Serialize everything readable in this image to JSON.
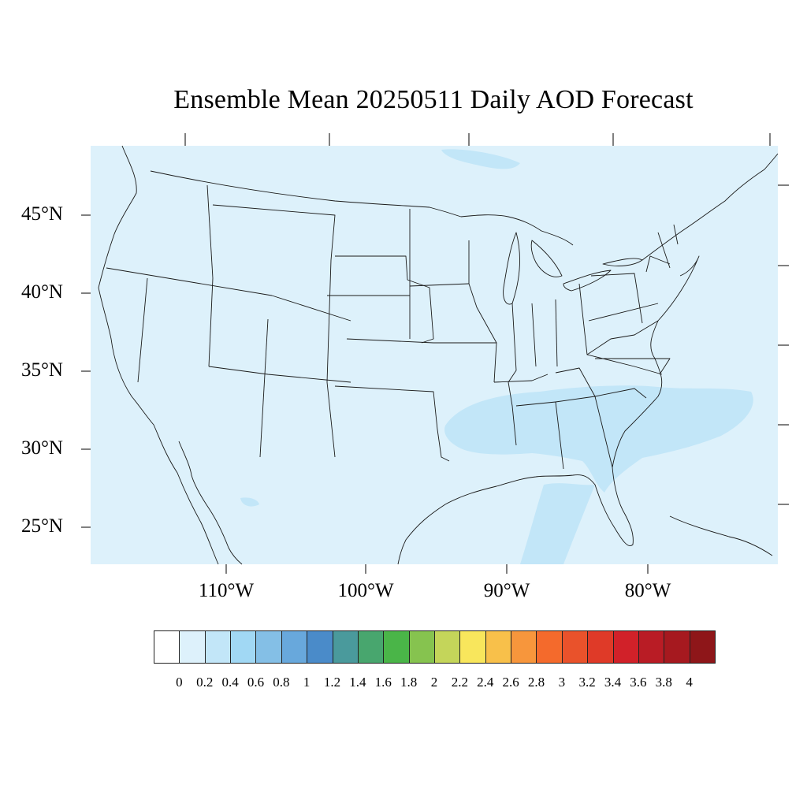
{
  "title": "Ensemble Mean 20250511 Daily AOD Forecast",
  "map": {
    "projection": "Lambert Conformal",
    "region": "Continental United States",
    "background_aod_color": "#ddf1fb",
    "elevated_aod_color": "#c2e6f8",
    "lat_labels": [
      "45°N",
      "40°N",
      "35°N",
      "30°N",
      "25°N"
    ],
    "lon_labels": [
      "110°W",
      "100°W",
      "90°W",
      "80°W"
    ]
  },
  "colorbar": {
    "levels": [
      "0",
      "0.2",
      "0.4",
      "0.6",
      "0.8",
      "1",
      "1.2",
      "1.4",
      "1.6",
      "1.8",
      "2",
      "2.2",
      "2.4",
      "2.6",
      "2.8",
      "3",
      "3.2",
      "3.4",
      "3.6",
      "3.8",
      "4"
    ],
    "colors": [
      "#ffffff",
      "#ddf1fb",
      "#c2e6f8",
      "#a1d8f4",
      "#84bfe6",
      "#68a8dc",
      "#4a8bc9",
      "#4a9a9c",
      "#48a66e",
      "#4ab548",
      "#86c34f",
      "#c4d55a",
      "#f8e65c",
      "#f8c04a",
      "#f7963c",
      "#f46a2c",
      "#e9522b",
      "#df3a28",
      "#d12129",
      "#b91c25",
      "#a6191f",
      "#8e1619"
    ]
  }
}
